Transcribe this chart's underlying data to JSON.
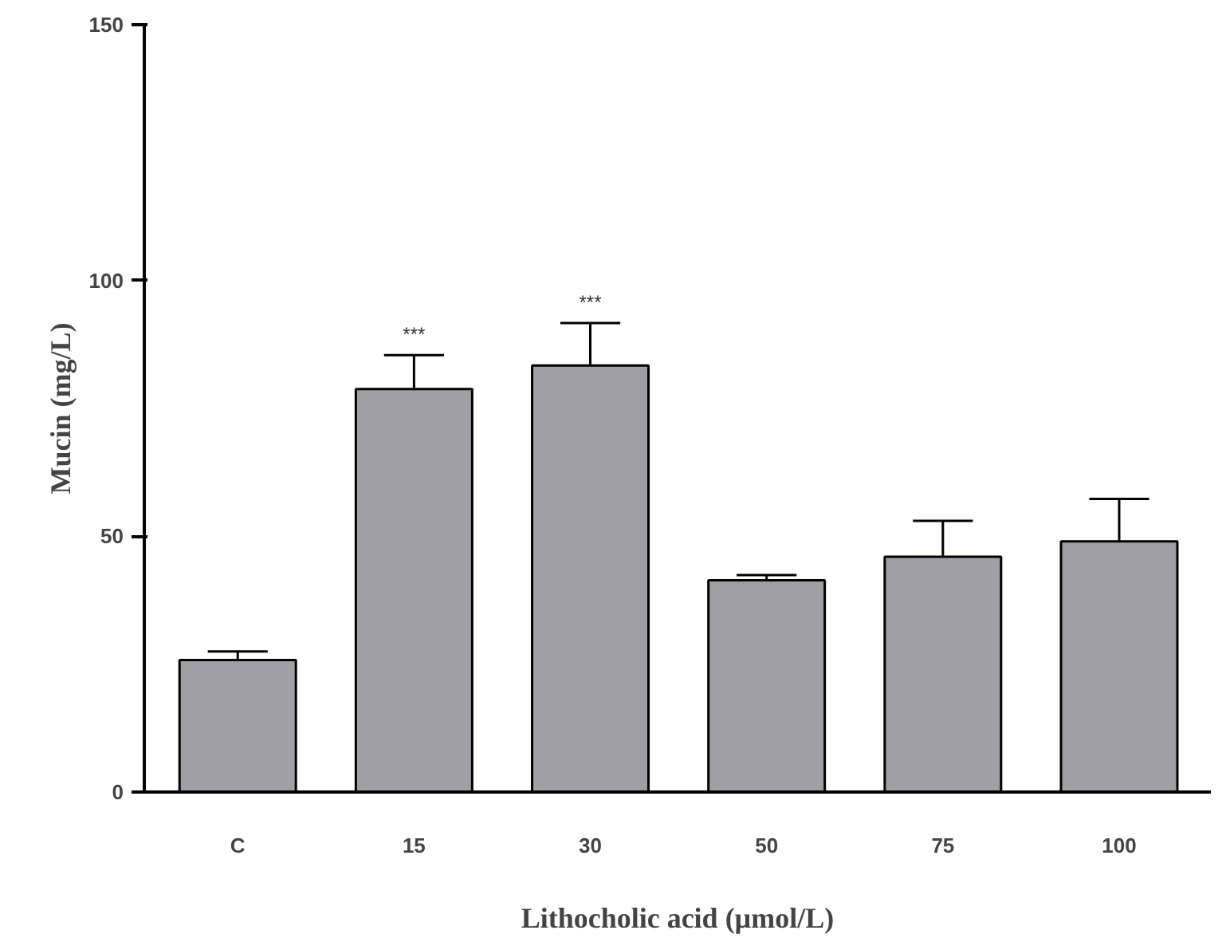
{
  "chart_data": {
    "type": "bar",
    "xlabel": "Lithocholic acid (µmol/L)",
    "ylabel": "Mucin (mg/L)",
    "categories": [
      "C",
      "15",
      "30",
      "50",
      "75",
      "100"
    ],
    "values": [
      25.8,
      78.8,
      83.4,
      41.4,
      46,
      49
    ],
    "errors": [
      1.7,
      6.6,
      8.3,
      1,
      7,
      8.3
    ],
    "color": "#a09fa6",
    "ylim": [
      0,
      150
    ],
    "yticks": [
      0,
      50,
      100,
      150
    ],
    "grid": false,
    "annotations": [
      {
        "text": "***",
        "x": "15",
        "y": 85.4
      },
      {
        "text": "***",
        "x": "30",
        "y": 91.7
      }
    ]
  }
}
